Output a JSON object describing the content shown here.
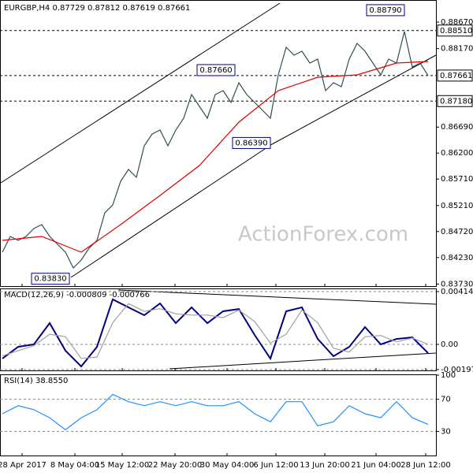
{
  "chart_data": [
    {
      "type": "line",
      "title": "EURGBP,H4  0.87729 0.87812 0.87619 0.87661",
      "watermark": "ActionForex.com",
      "x": [
        0,
        1,
        2,
        3,
        4,
        5,
        6,
        7,
        8,
        9,
        10,
        11,
        12,
        13,
        14,
        15,
        16,
        17,
        18,
        19,
        20,
        21,
        22,
        23,
        24,
        25,
        26,
        27,
        28,
        29,
        30,
        31,
        32,
        33,
        34,
        35,
        36,
        37,
        38,
        39,
        40,
        41,
        42,
        43,
        44,
        45,
        46,
        47,
        48,
        49,
        50,
        51,
        52,
        53,
        54
      ],
      "xlim": [
        -0.3,
        55.0
      ],
      "ylim": [
        0.83692,
        0.89086
      ],
      "yticks": [
        {
          "value": 0.8867,
          "label": "0.88670"
        },
        {
          "value": 0.8817,
          "label": "0.88170"
        },
        {
          "value": 0.8669,
          "label": "0.86690"
        },
        {
          "value": 0.862,
          "label": "0.86200"
        },
        {
          "value": 0.8571,
          "label": "0.85710"
        },
        {
          "value": 0.8521,
          "label": "0.85210"
        },
        {
          "value": 0.8472,
          "label": "0.84720"
        },
        {
          "value": 0.8423,
          "label": "0.84230"
        },
        {
          "value": 0.8373,
          "label": "0.83730"
        }
      ],
      "levels": [
        {
          "value": 0.8851,
          "label": "0.88510"
        },
        {
          "value": 0.87661,
          "label": "0.87661"
        },
        {
          "value": 0.8718,
          "label": "0.87180"
        }
      ],
      "annotations": [
        {
          "label": "0.88790",
          "value": 0.8879,
          "x": 51.2
        },
        {
          "label": "0.87660",
          "value": 0.8766,
          "x": 29.7
        },
        {
          "label": "0.86390",
          "value": 0.8639,
          "x": 34.2
        },
        {
          "label": "0.83830",
          "value": 0.8383,
          "x": 8.7
        }
      ],
      "series": [
        {
          "color": "#2f4f4f",
          "values": [
            0.84331,
            0.84628,
            0.84554,
            0.84628,
            0.84777,
            0.84851,
            0.84628,
            0.8448,
            0.84331,
            0.84034,
            0.84183,
            0.84406,
            0.84554,
            0.85074,
            0.85223,
            0.85669,
            0.85891,
            0.85743,
            0.86337,
            0.8656,
            0.86634,
            0.86337,
            0.86634,
            0.86857,
            0.87303,
            0.8708,
            0.86857,
            0.87303,
            0.87377,
            0.87154,
            0.87526,
            0.87303,
            0.87154,
            0.87006,
            0.86857,
            0.87674,
            0.88195,
            0.88046,
            0.8812,
            0.87897,
            0.87972,
            0.87377,
            0.87526,
            0.87452,
            0.87972,
            0.88269,
            0.8812,
            0.87897,
            0.87674,
            0.87972,
            0.87897,
            0.88492,
            0.87823,
            0.87897,
            0.87661
          ]
        },
        {
          "color": "#e00000",
          "x": [
            0,
            5,
            10,
            15,
            20,
            25,
            30,
            35,
            40,
            45,
            50,
            54
          ],
          "values": [
            0.84554,
            0.84628,
            0.84331,
            0.84851,
            0.85401,
            0.85966,
            0.86783,
            0.87377,
            0.8763,
            0.87674,
            0.87897,
            0.87927
          ]
        }
      ]
    },
    {
      "type": "line",
      "title": "MACD(12,26,9) -0.000809 -0.000766",
      "x": [
        0,
        2,
        4,
        6,
        8,
        10,
        12,
        14,
        16,
        18,
        20,
        22,
        24,
        26,
        28,
        30,
        32,
        34,
        36,
        38,
        40,
        42,
        44,
        46,
        48,
        50,
        52,
        54
      ],
      "xlim": [
        -0.3,
        55.0
      ],
      "ylim": [
        -0.002041,
        0.004331
      ],
      "yticks": [
        0.004145,
        {
          "value": 0,
          "label": "0.00"
        },
        -0.001972
      ],
      "series": [
        {
          "color": "#000080",
          "values": [
            -0.00111,
            -0.00019,
            0,
            0.00167,
            -0.00049,
            -0.00173,
            -0.00019,
            0.00353,
            0.00291,
            0.00229,
            0.00322,
            0.00167,
            0.00291,
            0.00167,
            0.0026,
            0.00278,
            0.00074,
            -0.00111,
            0.0026,
            0.00291,
            0.00043,
            -0.00093,
            -0.00019,
            0.00136,
            0,
            0.00043,
            0.00056,
            -0.00068
          ]
        },
        {
          "color": "#a0a0a0",
          "values": [
            -0.0009,
            -0.0005,
            -0.0001,
            0.0008,
            0.0006,
            -0.0011,
            -0.001,
            0.0017,
            0.0032,
            0.0026,
            0.0028,
            0.0024,
            0.0023,
            0.0023,
            0.0021,
            0.0027,
            0.0018,
            0.0001,
            0.0008,
            0.0027,
            0.0017,
            -0.0003,
            -0.0006,
            0.0006,
            0.0007,
            0.0002,
            0.0005,
            0
          ]
        }
      ]
    },
    {
      "type": "line",
      "title": "RSI(14) 38.8550",
      "x": [
        0,
        2,
        4,
        6,
        8,
        10,
        12,
        14,
        16,
        18,
        20,
        22,
        24,
        26,
        28,
        30,
        32,
        34,
        36,
        38,
        40,
        42,
        44,
        46,
        48,
        50,
        52,
        54
      ],
      "xlim": [
        -0.3,
        55.0
      ],
      "ylim": [
        0,
        100
      ],
      "yticks": [
        100,
        70,
        30
      ],
      "xticks": [
        {
          "value": 2.5,
          "label": "28 Apr 2017"
        },
        {
          "value": 9.2,
          "label": "8 May 04:00"
        },
        {
          "value": 15.2,
          "label": "15 May 12:00"
        },
        {
          "value": 21.9,
          "label": "22 May 20:00"
        },
        {
          "value": 28.5,
          "label": "30 May 04:00"
        },
        {
          "value": 34.7,
          "label": "6 Jun 12:00"
        },
        {
          "value": 40.9,
          "label": "13 Jun 20:00"
        },
        {
          "value": 47.4,
          "label": "21 Jun 04:00"
        },
        {
          "value": 53.7,
          "label": "28 Jun 12:00"
        }
      ],
      "series": [
        {
          "color": "#1e90ff",
          "values": [
            52,
            62,
            57,
            47,
            32,
            47,
            57,
            76,
            67,
            62,
            67,
            62,
            67,
            62,
            62,
            67,
            52,
            42,
            67,
            67,
            37,
            42,
            62,
            52,
            47,
            67,
            47,
            38.855
          ]
        }
      ]
    }
  ]
}
